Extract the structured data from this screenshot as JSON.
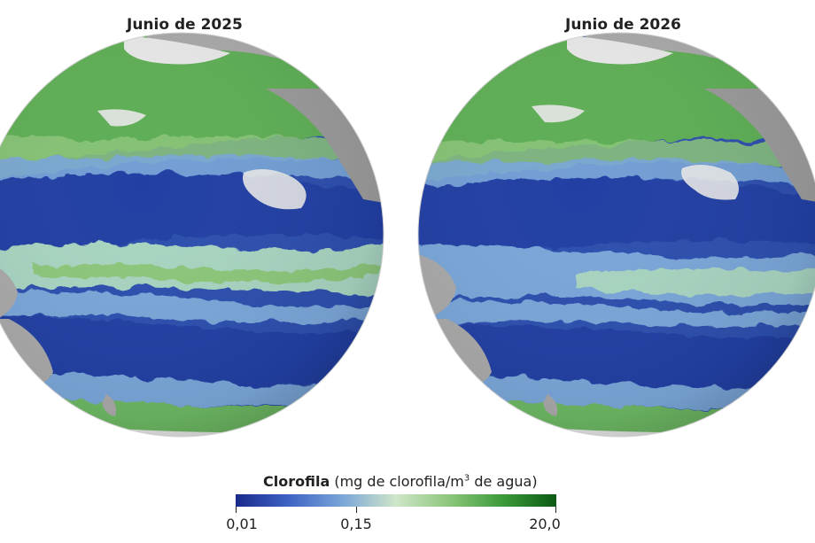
{
  "panels": [
    {
      "title": "Junio de 2025"
    },
    {
      "title": "Junio de 2026"
    }
  ],
  "legend": {
    "title_bold": "Clorofila",
    "title_unit_pre": "(mg de clorofila/m",
    "title_unit_sup": "3",
    "title_unit_post": " de agua)",
    "ticks": [
      "0,01",
      "0,15",
      "20,0"
    ],
    "gradient_colors": [
      "#1a2a8c",
      "#3f63c4",
      "#7aa6d8",
      "#cfe6c9",
      "#8cc67a",
      "#3a9a3a",
      "#0c5a14"
    ]
  },
  "colors": {
    "land": "#a9a9a9",
    "ice": "#e8e8e8",
    "low_chlorophyll": "#2a4aaa",
    "mid_chlorophyll": "#a8d4c0",
    "high_chlorophyll": "#3f9a3c"
  }
}
